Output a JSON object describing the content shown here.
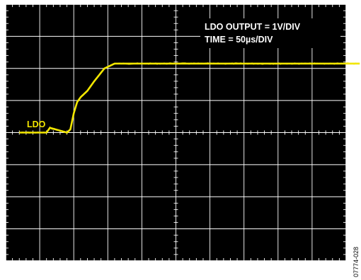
{
  "chart_data": {
    "type": "line",
    "style": "oscilloscope-capture",
    "grid": true,
    "grid_divisions": {
      "x": 10,
      "y": 8
    },
    "background_color": "#000000",
    "grid_color": "#ffffff",
    "annotation": {
      "line1": "LDO OUTPUT = 1V/DIV",
      "line2": "TIME = 50µs/DIV"
    },
    "figure_id": "07774-028",
    "series": [
      {
        "name": "LDO",
        "color": "#f2e600",
        "x_unit": "µs",
        "y_unit": "V",
        "x": [
          0,
          40,
          45,
          70,
          75,
          80,
          85,
          90,
          100,
          110,
          125,
          140,
          500
        ],
        "y": [
          0,
          0,
          0.15,
          0,
          0.1,
          0.6,
          0.95,
          1.1,
          1.3,
          1.6,
          2.0,
          2.15,
          2.15
        ]
      }
    ],
    "xlim": [
      -20,
      480
    ],
    "ylim": [
      -4,
      4
    ]
  }
}
